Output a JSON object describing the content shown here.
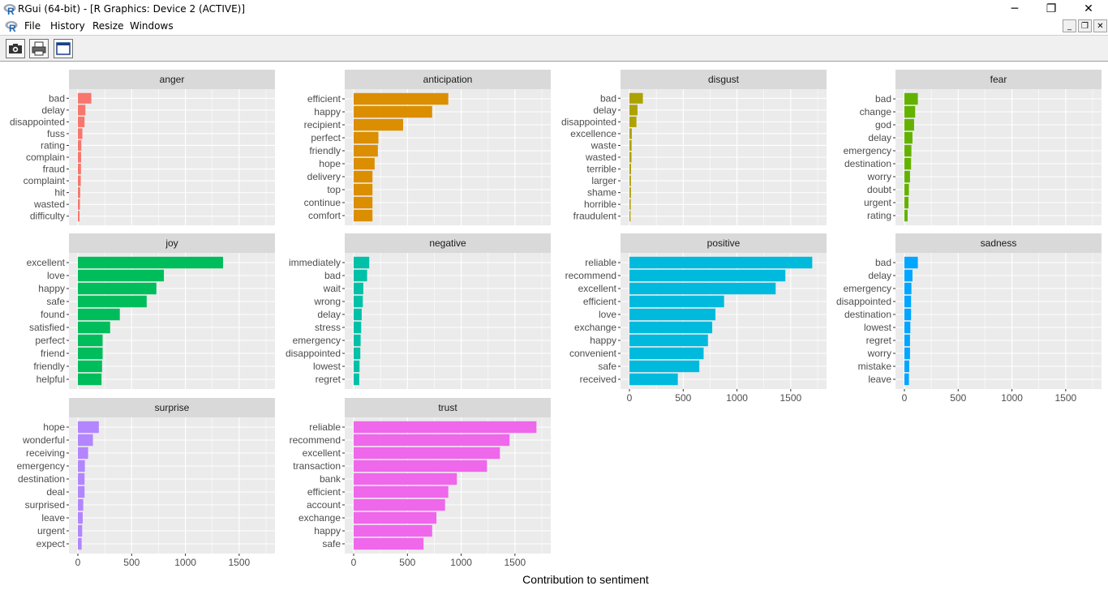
{
  "window": {
    "title": "RGui (64-bit) - [R Graphics: Device 2 (ACTIVE)]",
    "minimize_glyph": "─",
    "maximize_glyph": "❐",
    "close_glyph": "✕"
  },
  "menu": {
    "items": [
      {
        "label": "File"
      },
      {
        "label": "History"
      },
      {
        "label": "Resize"
      },
      {
        "label": "Windows"
      }
    ],
    "mdi_minimize_glyph": "_",
    "mdi_restore_glyph": "❐",
    "mdi_close_glyph": "✕"
  },
  "toolbar": {
    "icons": [
      "camera-icon",
      "printer-icon",
      "console-window-icon"
    ]
  },
  "colors": {
    "panel_bg": "#EBEBEB",
    "strip_bg": "#D9D9D9",
    "grid": "#FFFFFF",
    "axis_text": "#4D4D4D"
  },
  "chart_data": {
    "type": "bar",
    "orientation": "horizontal",
    "facet_layout": "4 columns, shared x scale",
    "xlabel": "Contribution to sentiment",
    "xlim": [
      0,
      1750
    ],
    "x_ticks": [
      0,
      500,
      1000,
      1500
    ],
    "facets": [
      {
        "name": "anger",
        "color": "#F8766D",
        "categories": [
          "bad",
          "delay",
          "disappointed",
          "fuss",
          "rating",
          "complain",
          "fraud",
          "complaint",
          "hit",
          "wasted",
          "difficulty"
        ],
        "values": [
          125,
          70,
          62,
          42,
          32,
          30,
          29,
          27,
          22,
          19,
          15
        ]
      },
      {
        "name": "anticipation",
        "color": "#DB8E00",
        "categories": [
          "efficient",
          "happy",
          "recipient",
          "perfect",
          "friendly",
          "hope",
          "delivery",
          "top",
          "continue",
          "comfort"
        ],
        "values": [
          880,
          730,
          460,
          230,
          225,
          195,
          175,
          175,
          175,
          175
        ]
      },
      {
        "name": "disgust",
        "color": "#AEA200",
        "categories": [
          "bad",
          "delay",
          "disappointed",
          "excellence",
          "waste",
          "wasted",
          "terrible",
          "larger",
          "shame",
          "horrible",
          "fraudulent"
        ],
        "values": [
          125,
          75,
          65,
          22,
          20,
          19,
          15,
          14,
          14,
          12,
          10
        ]
      },
      {
        "name": "fear",
        "color": "#64B200",
        "categories": [
          "bad",
          "change",
          "god",
          "delay",
          "emergency",
          "destination",
          "worry",
          "doubt",
          "urgent",
          "rating"
        ],
        "values": [
          125,
          100,
          90,
          75,
          65,
          62,
          52,
          42,
          38,
          30
        ]
      },
      {
        "name": "joy",
        "color": "#00BD5C",
        "categories": [
          "excellent",
          "love",
          "happy",
          "safe",
          "found",
          "satisfied",
          "perfect",
          "friend",
          "friendly",
          "helpful"
        ],
        "values": [
          1350,
          800,
          730,
          640,
          390,
          300,
          230,
          230,
          225,
          220
        ]
      },
      {
        "name": "negative",
        "color": "#00C1A7",
        "categories": [
          "immediately",
          "bad",
          "wait",
          "wrong",
          "delay",
          "stress",
          "emergency",
          "disappointed",
          "lowest",
          "regret"
        ],
        "values": [
          145,
          125,
          90,
          85,
          75,
          70,
          65,
          62,
          55,
          52
        ]
      },
      {
        "name": "positive",
        "color": "#00BADE",
        "categories": [
          "reliable",
          "recommend",
          "excellent",
          "efficient",
          "love",
          "exchange",
          "happy",
          "convenient",
          "safe",
          "received"
        ],
        "values": [
          1700,
          1450,
          1360,
          880,
          800,
          770,
          730,
          690,
          650,
          450
        ]
      },
      {
        "name": "sadness",
        "color": "#00A6FF",
        "categories": [
          "bad",
          "delay",
          "emergency",
          "disappointed",
          "destination",
          "lowest",
          "regret",
          "worry",
          "mistake",
          "leave"
        ],
        "values": [
          125,
          75,
          65,
          62,
          62,
          55,
          52,
          52,
          45,
          42
        ]
      },
      {
        "name": "surprise",
        "color": "#B385FF",
        "categories": [
          "hope",
          "wonderful",
          "receiving",
          "emergency",
          "destination",
          "deal",
          "surprised",
          "leave",
          "urgent",
          "expect"
        ],
        "values": [
          195,
          140,
          95,
          65,
          62,
          62,
          50,
          45,
          40,
          35
        ]
      },
      {
        "name": "trust",
        "color": "#EF67EB",
        "categories": [
          "reliable",
          "recommend",
          "excellent",
          "transaction",
          "bank",
          "efficient",
          "account",
          "exchange",
          "happy",
          "safe"
        ],
        "values": [
          1700,
          1450,
          1360,
          1240,
          960,
          880,
          850,
          770,
          730,
          650
        ]
      }
    ]
  }
}
